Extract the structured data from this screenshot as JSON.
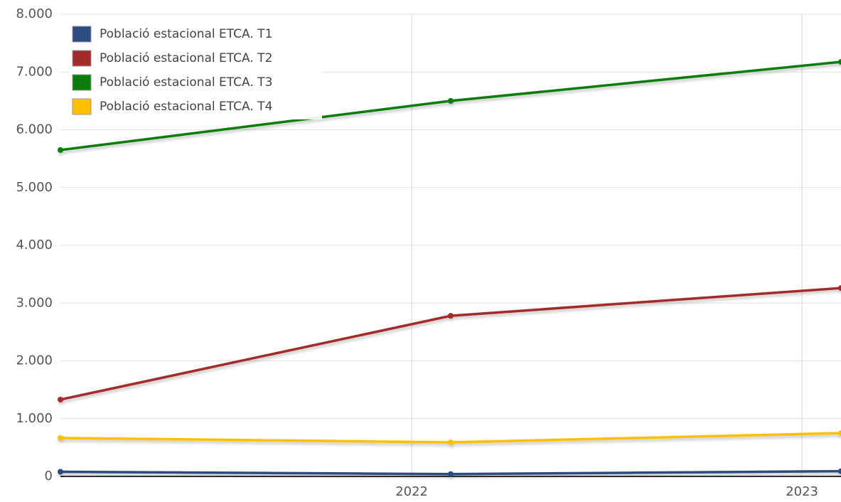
{
  "chart_data": {
    "type": "line",
    "x": [
      2021.1,
      2022.1,
      2023.1
    ],
    "xlim": [
      2021.1,
      2023.1
    ],
    "xticks": [
      2022,
      2023
    ],
    "ylim": [
      0,
      8000
    ],
    "yticks": [
      0,
      {
        "value": 1000,
        "label": "1.000"
      },
      {
        "value": 2000,
        "label": "2.000"
      },
      {
        "value": 3000,
        "label": "3.000"
      },
      {
        "value": 4000,
        "label": "4.000"
      },
      {
        "value": 5000,
        "label": "5.000"
      },
      {
        "value": 6000,
        "label": "6.000"
      },
      {
        "value": 7000,
        "label": "7.000"
      },
      {
        "value": 8000,
        "label": "8.000"
      }
    ],
    "grid": true,
    "legend": "upper left",
    "series": [
      {
        "name": "Població estacional ETCA. T1",
        "color": "#2b4c7e",
        "values": [
          80,
          40,
          90
        ]
      },
      {
        "name": "Població estacional ETCA. T2",
        "color": "#a52a2a",
        "values": [
          1330,
          2780,
          3260
        ]
      },
      {
        "name": "Població estacional ETCA. T3",
        "color": "#0a7d0a",
        "values": [
          5650,
          6500,
          7175
        ]
      },
      {
        "name": "Població estacional ETCA. T4",
        "color": "#ffc000",
        "values": [
          665,
          590,
          750
        ]
      }
    ]
  }
}
